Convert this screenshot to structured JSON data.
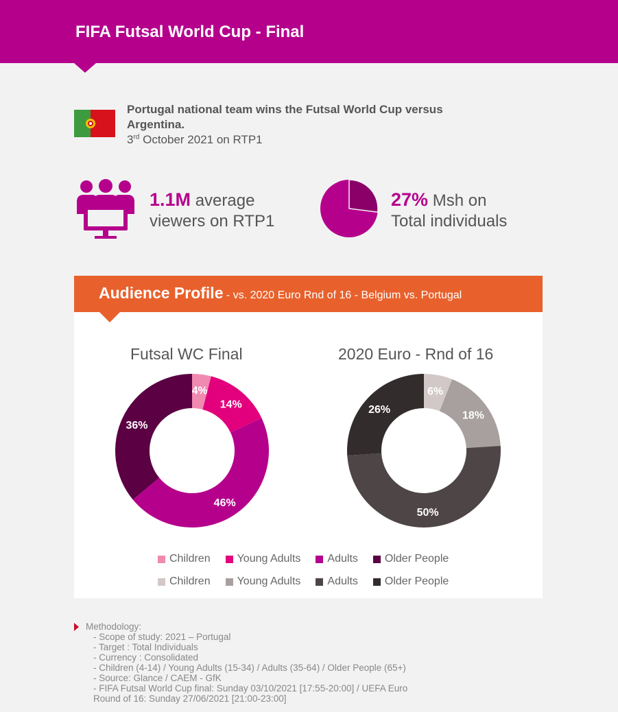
{
  "header": {
    "title": "FIFA Futsal World Cup - Final",
    "color": "#b5008c"
  },
  "intro": {
    "headline": "Portugal national team wins the Futsal World Cup versus Argentina.",
    "date_day": "3",
    "date_suffix": "rd",
    "date_rest": " October 2021 on RTP1"
  },
  "kpis": {
    "viewers_value": "1.1M",
    "viewers_text_1": " average",
    "viewers_text_2": "viewers on RTP1",
    "share_value": "27%",
    "share_text_1": " Msh on",
    "share_text_2": "Total individuals",
    "share_fraction": 0.27
  },
  "profile": {
    "title": "Audience Profile",
    "subtitle": " - vs. 2020 Euro Rnd of 16 - Belgium vs. Portugal"
  },
  "chart_data": [
    {
      "type": "pie",
      "title": "Futsal WC Final",
      "categories": [
        "Children",
        "Young Adults",
        "Adults",
        "Older People"
      ],
      "values": [
        4,
        14,
        46,
        36
      ],
      "labels": [
        "4%",
        "14%",
        "46%",
        "36%"
      ],
      "colors": [
        "#f08ab0",
        "#e3007d",
        "#b5008c",
        "#5a0043"
      ]
    },
    {
      "type": "pie",
      "title": "2020 Euro - Rnd of 16",
      "categories": [
        "Children",
        "Young Adults",
        "Adults",
        "Older People"
      ],
      "values": [
        6,
        18,
        50,
        26
      ],
      "labels": [
        "6%",
        "18%",
        "50%",
        "26%"
      ],
      "colors": [
        "#d2c8c8",
        "#a89f9f",
        "#4e4546",
        "#332c2d"
      ]
    }
  ],
  "methodology": {
    "title": "Methodology:",
    "items": [
      "- Scope of study: 2021 – Portugal",
      "- Target : Total Individuals",
      "- Currency : Consolidated",
      "- Children (4-14) / Young Adults (15-34) / Adults (35-64) / Older People (65+)",
      "- Source: Glance / CAEM - GfK",
      "- FIFA Futsal World Cup final: Sunday 03/10/2021 [17:55-20:00] / UEFA Euro",
      "   Round of 16:  Sunday 27/06/2021 [21:00-23:00]"
    ]
  }
}
